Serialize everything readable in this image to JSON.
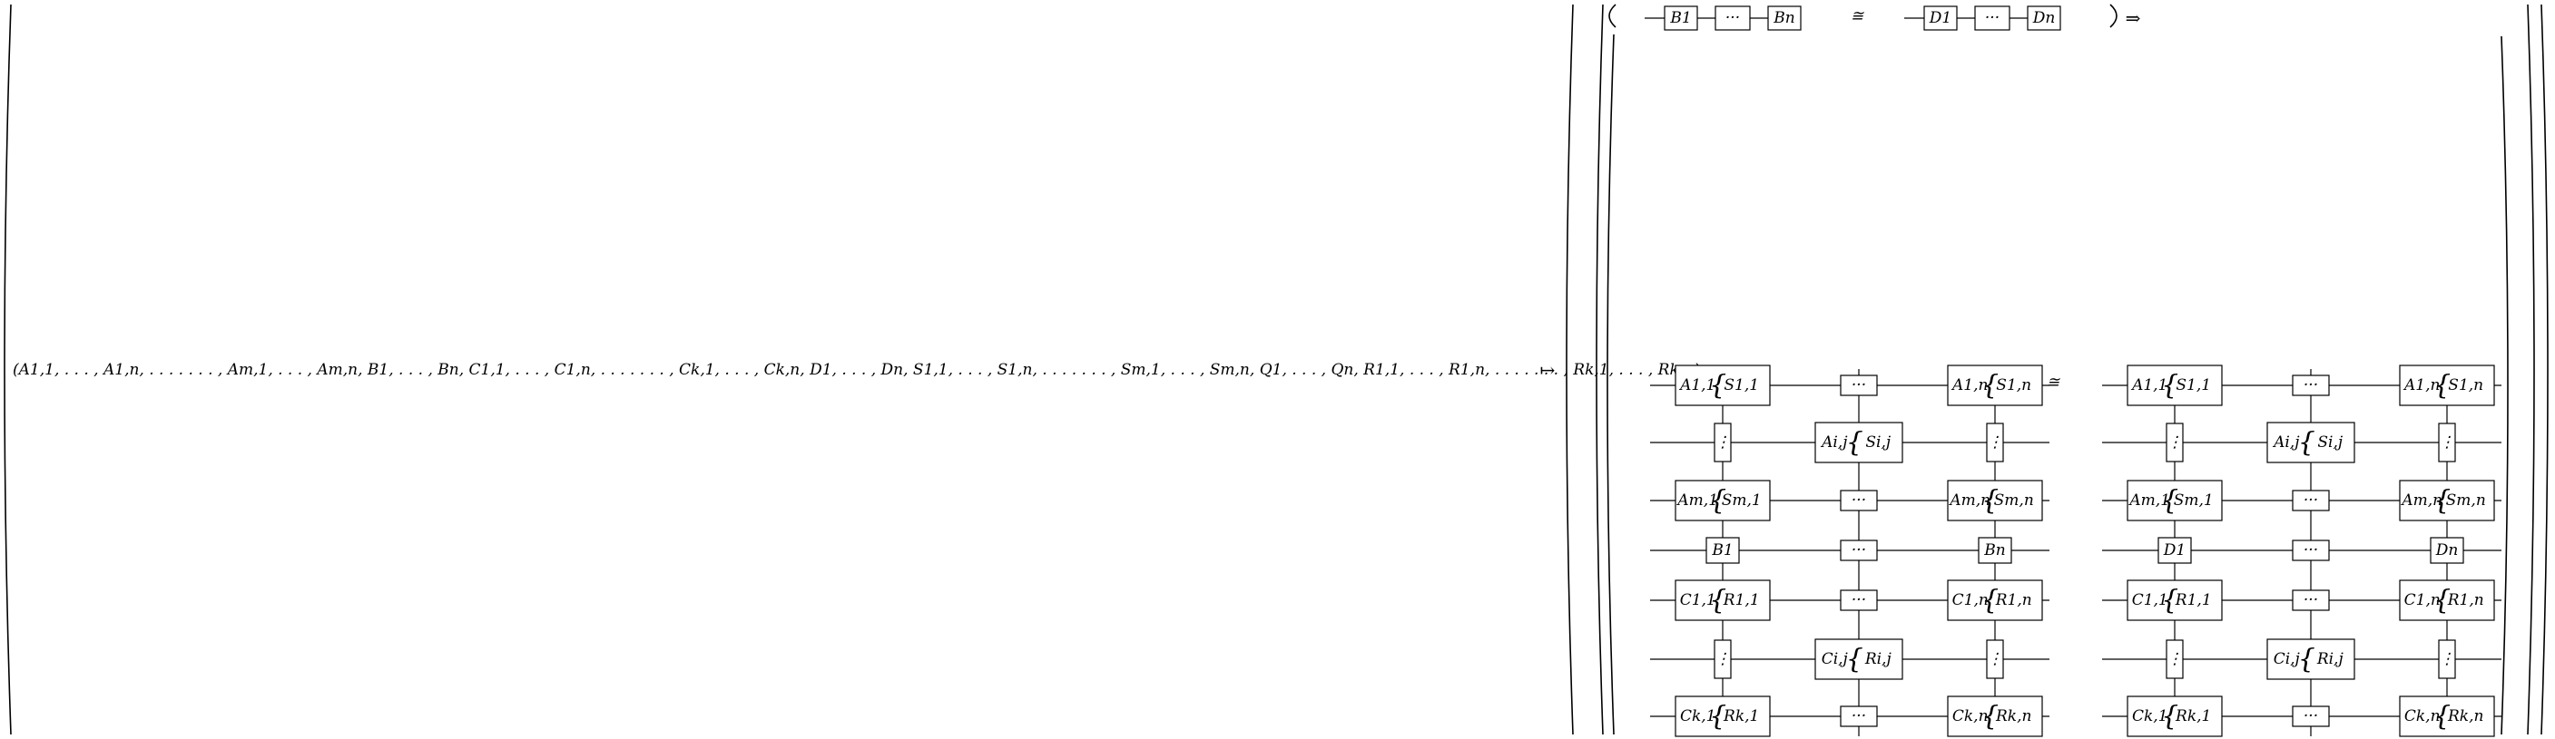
{
  "lhs_formula": "(A1,1, . . . , A1,n, . . . . . . . , Am,1, . . . , Am,n, B1, . . . , Bn, C1,1, . . . , C1,n, . . . . . . . , Ck,1, . . . , Ck,n, D1, . . . , Dn, S1,1, . . . , S1,n, . . . . . . . , Sm,1, . . . , Sm,n, Q1, . . . , Qn, R1,1, . . . , R1,n, . . . . . . . , Rk,1, . . . , Rk,n)",
  "mapsto": "↦",
  "congruent": "≅",
  "implies": "⇒",
  "ellipsis": "···",
  "vdots": "⋮",
  "top_row": {
    "left_chain": [
      "B1",
      "···",
      "Bn"
    ],
    "right_chain": [
      "D1",
      "···",
      "Dn"
    ]
  },
  "grid": {
    "rows": [
      {
        "left": "A1,1",
        "left_side": "S1,1",
        "mid": "···",
        "right": "A1,n",
        "right_side": "S1,n"
      },
      {
        "left": "⋮",
        "mid": "Ai,j",
        "mid_side": "Si,j",
        "right": "⋮"
      },
      {
        "left": "Am,1",
        "left_side": "Sm,1",
        "mid": "···",
        "right": "Am,n",
        "right_side": "Sm,n"
      },
      {
        "left": "B1",
        "mid": "···",
        "right": "Bn",
        "alt_left": "D1",
        "alt_right": "Dn"
      },
      {
        "left": "C1,1",
        "left_side": "R1,1",
        "mid": "···",
        "right": "C1,n",
        "right_side": "R1,n"
      },
      {
        "left": "⋮",
        "mid": "Ci,j",
        "mid_side": "Ri,j",
        "right": "⋮"
      },
      {
        "left": "Ck,1",
        "left_side": "Rk,1",
        "mid": "···",
        "right": "Ck,n",
        "right_side": "Rk,n"
      }
    ]
  }
}
